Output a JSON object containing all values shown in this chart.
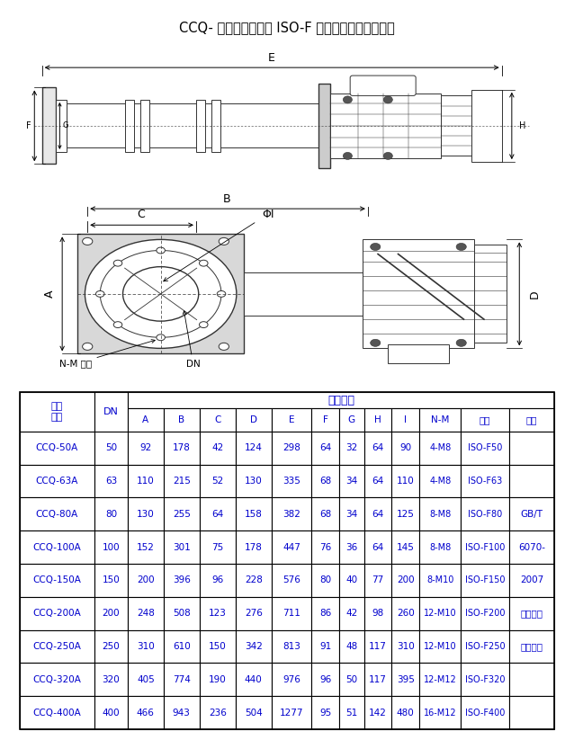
{
  "title": "CCQ- 气动插板阀系列 ISO-F 法兰连接形式外型尺寸",
  "table_data": [
    [
      "CCQ-50A",
      "50",
      "92",
      "178",
      "42",
      "124",
      "298",
      "64",
      "32",
      "64",
      "90",
      "4-M8",
      "ISO-F50",
      ""
    ],
    [
      "CCQ-63A",
      "63",
      "110",
      "215",
      "52",
      "130",
      "335",
      "68",
      "34",
      "64",
      "110",
      "4-M8",
      "ISO-F63",
      ""
    ],
    [
      "CCQ-80A",
      "80",
      "130",
      "255",
      "64",
      "158",
      "382",
      "68",
      "34",
      "64",
      "125",
      "8-M8",
      "ISO-F80",
      "GB/T"
    ],
    [
      "CCQ-100A",
      "100",
      "152",
      "301",
      "75",
      "178",
      "447",
      "76",
      "36",
      "64",
      "145",
      "8-M8",
      "ISO-F100",
      "6070-"
    ],
    [
      "CCQ-150A",
      "150",
      "200",
      "396",
      "96",
      "228",
      "576",
      "80",
      "40",
      "77",
      "200",
      "8-M10",
      "ISO-F150",
      "2007"
    ],
    [
      "CCQ-200A",
      "200",
      "248",
      "508",
      "123",
      "276",
      "711",
      "86",
      "42",
      "98",
      "260",
      "12-M10",
      "ISO-F200",
      "真空技术"
    ],
    [
      "CCQ-250A",
      "250",
      "310",
      "610",
      "150",
      "342",
      "813",
      "91",
      "48",
      "117",
      "310",
      "12-M10",
      "ISO-F250",
      "法兰尺寸"
    ],
    [
      "CCQ-320A",
      "320",
      "405",
      "774",
      "190",
      "440",
      "976",
      "96",
      "50",
      "117",
      "395",
      "12-M12",
      "ISO-F320",
      ""
    ],
    [
      "CCQ-400A",
      "400",
      "466",
      "943",
      "236",
      "504",
      "1277",
      "95",
      "51",
      "142",
      "480",
      "16-M12",
      "ISO-F400",
      ""
    ]
  ],
  "text_color": "#0000cd",
  "border_color": "#000000",
  "draw_color": "#333333"
}
